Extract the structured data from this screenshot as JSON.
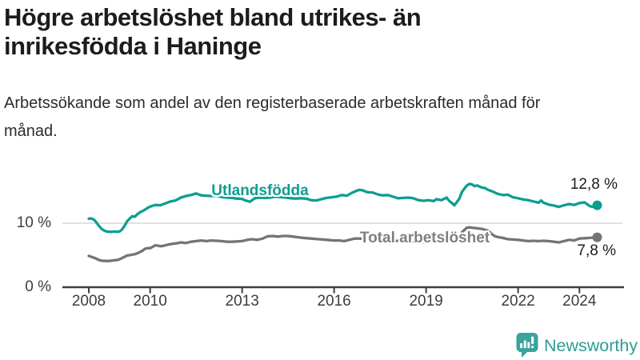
{
  "header": {
    "title": "Högre arbetslöshet bland utrikes- än inrikesfödda i Haninge",
    "subtitle": "Arbetssökande som andel av den registerbaserade arbetskraften månad för månad."
  },
  "chart_data": {
    "type": "line",
    "title": "Högre arbetslöshet bland utrikes- än inrikesfödda i Haninge",
    "subtitle": "Arbetssökande som andel av den registerbaserade arbetskraften månad för månad.",
    "grid": "single horizontal gridline at 10 %, dark baseline at 0 %",
    "legend_position": "inline labels on lines, end-value labels at right",
    "x_axis": {
      "tick_labels": [
        "2008",
        "2010",
        "2013",
        "2016",
        "2019",
        "2022",
        "2024"
      ],
      "tick_years": [
        2008,
        2010,
        2013,
        2016,
        2019,
        2022,
        2024
      ],
      "range": [
        2008,
        2024.7
      ]
    },
    "y_axis": {
      "tick_labels": [
        "0 %",
        "10 %"
      ],
      "tick_values": [
        0,
        10
      ],
      "unit": "%",
      "range": [
        0,
        19
      ]
    },
    "series": [
      {
        "name": "Utlandsfödda",
        "color": "#0d9e90",
        "end_label": "12,8 %",
        "end_value": 12.8,
        "points": [
          [
            2008.0,
            10.7
          ],
          [
            2008.08,
            10.75
          ],
          [
            2008.17,
            10.55
          ],
          [
            2008.25,
            10.1
          ],
          [
            2008.33,
            9.6
          ],
          [
            2008.42,
            9.1
          ],
          [
            2008.5,
            8.85
          ],
          [
            2008.58,
            8.7
          ],
          [
            2008.67,
            8.65
          ],
          [
            2008.75,
            8.65
          ],
          [
            2008.83,
            8.7
          ],
          [
            2008.92,
            8.65
          ],
          [
            2009.0,
            8.7
          ],
          [
            2009.08,
            9.0
          ],
          [
            2009.17,
            9.6
          ],
          [
            2009.25,
            10.3
          ],
          [
            2009.33,
            10.7
          ],
          [
            2009.42,
            11.1
          ],
          [
            2009.5,
            11.0
          ],
          [
            2009.58,
            11.4
          ],
          [
            2009.67,
            11.7
          ],
          [
            2009.75,
            11.9
          ],
          [
            2009.83,
            12.1
          ],
          [
            2009.92,
            12.4
          ],
          [
            2010.0,
            12.6
          ],
          [
            2010.17,
            12.85
          ],
          [
            2010.33,
            12.8
          ],
          [
            2010.5,
            13.1
          ],
          [
            2010.67,
            13.4
          ],
          [
            2010.83,
            13.55
          ],
          [
            2011.0,
            14.0
          ],
          [
            2011.17,
            14.25
          ],
          [
            2011.33,
            14.4
          ],
          [
            2011.5,
            14.65
          ],
          [
            2011.58,
            14.5
          ],
          [
            2011.67,
            14.35
          ],
          [
            2011.83,
            14.3
          ],
          [
            2012.0,
            14.25
          ],
          [
            2012.17,
            14.3
          ],
          [
            2012.33,
            14.1
          ],
          [
            2012.5,
            14.0
          ],
          [
            2012.67,
            13.95
          ],
          [
            2012.83,
            13.85
          ],
          [
            2013.0,
            13.8
          ],
          [
            2013.08,
            13.6
          ],
          [
            2013.25,
            13.35
          ],
          [
            2013.42,
            13.9
          ],
          [
            2013.58,
            14.0
          ],
          [
            2013.75,
            13.95
          ],
          [
            2013.92,
            14.0
          ],
          [
            2014.08,
            14.15
          ],
          [
            2014.25,
            14.1
          ],
          [
            2014.42,
            14.0
          ],
          [
            2014.58,
            13.9
          ],
          [
            2014.75,
            13.85
          ],
          [
            2014.92,
            13.9
          ],
          [
            2015.08,
            13.85
          ],
          [
            2015.25,
            13.6
          ],
          [
            2015.42,
            13.55
          ],
          [
            2015.58,
            13.75
          ],
          [
            2015.75,
            13.95
          ],
          [
            2015.92,
            14.05
          ],
          [
            2016.08,
            14.15
          ],
          [
            2016.25,
            14.4
          ],
          [
            2016.42,
            14.3
          ],
          [
            2016.58,
            14.75
          ],
          [
            2016.75,
            15.1
          ],
          [
            2016.83,
            15.2
          ],
          [
            2016.92,
            15.15
          ],
          [
            2017.08,
            14.85
          ],
          [
            2017.25,
            14.8
          ],
          [
            2017.42,
            14.5
          ],
          [
            2017.58,
            14.35
          ],
          [
            2017.75,
            14.4
          ],
          [
            2017.92,
            14.15
          ],
          [
            2018.08,
            13.9
          ],
          [
            2018.25,
            13.95
          ],
          [
            2018.42,
            14.0
          ],
          [
            2018.58,
            13.9
          ],
          [
            2018.75,
            13.6
          ],
          [
            2018.92,
            13.5
          ],
          [
            2019.08,
            13.6
          ],
          [
            2019.25,
            13.45
          ],
          [
            2019.33,
            13.75
          ],
          [
            2019.5,
            13.6
          ],
          [
            2019.67,
            14.0
          ],
          [
            2019.75,
            13.5
          ],
          [
            2019.83,
            13.2
          ],
          [
            2019.92,
            12.8
          ],
          [
            2020.0,
            13.3
          ],
          [
            2020.08,
            13.8
          ],
          [
            2020.17,
            14.9
          ],
          [
            2020.33,
            15.9
          ],
          [
            2020.42,
            16.15
          ],
          [
            2020.5,
            16.05
          ],
          [
            2020.58,
            15.8
          ],
          [
            2020.67,
            15.9
          ],
          [
            2020.75,
            15.7
          ],
          [
            2020.83,
            15.55
          ],
          [
            2020.92,
            15.5
          ],
          [
            2021.0,
            15.25
          ],
          [
            2021.17,
            14.95
          ],
          [
            2021.33,
            14.6
          ],
          [
            2021.5,
            14.4
          ],
          [
            2021.67,
            14.45
          ],
          [
            2021.83,
            14.05
          ],
          [
            2022.0,
            13.9
          ],
          [
            2022.17,
            13.7
          ],
          [
            2022.33,
            13.6
          ],
          [
            2022.5,
            13.4
          ],
          [
            2022.67,
            13.2
          ],
          [
            2022.75,
            13.55
          ],
          [
            2022.83,
            13.2
          ],
          [
            2022.92,
            13.05
          ],
          [
            2023.0,
            12.9
          ],
          [
            2023.17,
            12.75
          ],
          [
            2023.33,
            12.55
          ],
          [
            2023.5,
            12.8
          ],
          [
            2023.67,
            13.0
          ],
          [
            2023.83,
            12.85
          ],
          [
            2024.0,
            13.15
          ],
          [
            2024.17,
            13.25
          ],
          [
            2024.33,
            12.7
          ],
          [
            2024.42,
            12.55
          ],
          [
            2024.58,
            12.8
          ]
        ]
      },
      {
        "name": "Total arbetslöshet",
        "color": "#747477",
        "end_label": "7,8 %",
        "end_value": 7.8,
        "points": [
          [
            2008.0,
            4.9
          ],
          [
            2008.08,
            4.75
          ],
          [
            2008.17,
            4.6
          ],
          [
            2008.25,
            4.45
          ],
          [
            2008.33,
            4.25
          ],
          [
            2008.42,
            4.15
          ],
          [
            2008.5,
            4.1
          ],
          [
            2008.58,
            4.1
          ],
          [
            2008.67,
            4.1
          ],
          [
            2008.75,
            4.15
          ],
          [
            2008.83,
            4.2
          ],
          [
            2008.92,
            4.25
          ],
          [
            2009.0,
            4.35
          ],
          [
            2009.08,
            4.55
          ],
          [
            2009.17,
            4.75
          ],
          [
            2009.25,
            4.95
          ],
          [
            2009.33,
            5.0
          ],
          [
            2009.42,
            5.1
          ],
          [
            2009.5,
            5.15
          ],
          [
            2009.58,
            5.3
          ],
          [
            2009.67,
            5.5
          ],
          [
            2009.75,
            5.7
          ],
          [
            2009.83,
            6.0
          ],
          [
            2009.92,
            6.1
          ],
          [
            2010.0,
            6.1
          ],
          [
            2010.08,
            6.3
          ],
          [
            2010.17,
            6.55
          ],
          [
            2010.25,
            6.5
          ],
          [
            2010.33,
            6.4
          ],
          [
            2010.42,
            6.45
          ],
          [
            2010.58,
            6.65
          ],
          [
            2010.75,
            6.8
          ],
          [
            2010.92,
            6.9
          ],
          [
            2011.0,
            7.0
          ],
          [
            2011.17,
            6.9
          ],
          [
            2011.33,
            7.1
          ],
          [
            2011.5,
            7.2
          ],
          [
            2011.67,
            7.3
          ],
          [
            2011.83,
            7.2
          ],
          [
            2012.0,
            7.3
          ],
          [
            2012.17,
            7.25
          ],
          [
            2012.33,
            7.2
          ],
          [
            2012.5,
            7.1
          ],
          [
            2012.67,
            7.1
          ],
          [
            2012.83,
            7.15
          ],
          [
            2013.0,
            7.2
          ],
          [
            2013.17,
            7.4
          ],
          [
            2013.33,
            7.5
          ],
          [
            2013.5,
            7.4
          ],
          [
            2013.67,
            7.6
          ],
          [
            2013.83,
            7.95
          ],
          [
            2014.0,
            8.0
          ],
          [
            2014.17,
            7.9
          ],
          [
            2014.33,
            8.0
          ],
          [
            2014.5,
            8.0
          ],
          [
            2014.67,
            7.9
          ],
          [
            2014.83,
            7.8
          ],
          [
            2015.0,
            7.7
          ],
          [
            2015.25,
            7.6
          ],
          [
            2015.5,
            7.5
          ],
          [
            2015.75,
            7.4
          ],
          [
            2016.0,
            7.3
          ],
          [
            2016.17,
            7.3
          ],
          [
            2016.33,
            7.2
          ],
          [
            2016.5,
            7.4
          ],
          [
            2016.67,
            7.6
          ],
          [
            2016.83,
            7.6
          ],
          [
            2017.0,
            7.55
          ],
          [
            2017.25,
            7.45
          ],
          [
            2017.5,
            7.4
          ],
          [
            2017.75,
            7.35
          ],
          [
            2018.0,
            7.25
          ],
          [
            2018.25,
            7.2
          ],
          [
            2018.5,
            7.1
          ],
          [
            2018.75,
            7.05
          ],
          [
            2019.0,
            7.0
          ],
          [
            2019.25,
            7.05
          ],
          [
            2019.5,
            7.15
          ],
          [
            2019.75,
            7.3
          ],
          [
            2020.0,
            7.6
          ],
          [
            2020.08,
            8.0
          ],
          [
            2020.17,
            8.6
          ],
          [
            2020.33,
            9.3
          ],
          [
            2020.42,
            9.35
          ],
          [
            2020.5,
            9.3
          ],
          [
            2020.67,
            9.2
          ],
          [
            2020.83,
            9.1
          ],
          [
            2021.0,
            8.85
          ],
          [
            2021.08,
            8.6
          ],
          [
            2021.17,
            8.2
          ],
          [
            2021.25,
            7.95
          ],
          [
            2021.33,
            7.85
          ],
          [
            2021.5,
            7.7
          ],
          [
            2021.67,
            7.5
          ],
          [
            2021.83,
            7.45
          ],
          [
            2022.0,
            7.4
          ],
          [
            2022.17,
            7.3
          ],
          [
            2022.33,
            7.2
          ],
          [
            2022.5,
            7.25
          ],
          [
            2022.67,
            7.2
          ],
          [
            2022.83,
            7.25
          ],
          [
            2023.0,
            7.2
          ],
          [
            2023.17,
            7.1
          ],
          [
            2023.33,
            7.0
          ],
          [
            2023.5,
            7.2
          ],
          [
            2023.67,
            7.4
          ],
          [
            2023.83,
            7.3
          ],
          [
            2024.0,
            7.6
          ],
          [
            2024.17,
            7.65
          ],
          [
            2024.33,
            7.7
          ],
          [
            2024.58,
            7.8
          ]
        ]
      }
    ]
  },
  "footer": {
    "brand": "Newsworthy",
    "logo_icon": "speech-bubble-bar-chart-icon",
    "brand_color": "#2d9d95",
    "icon_color": "#3aa39b"
  }
}
